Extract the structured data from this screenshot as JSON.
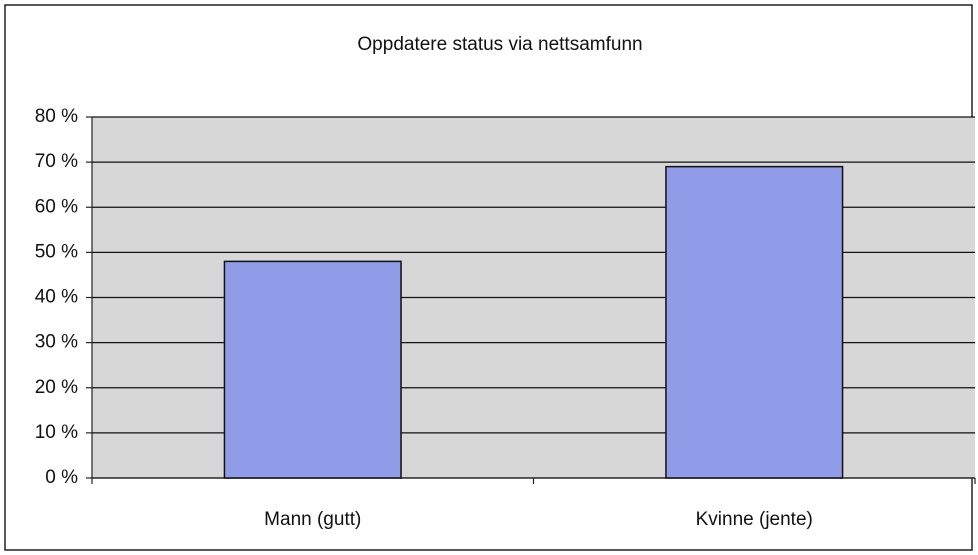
{
  "chart_data": {
    "type": "bar",
    "title": "Oppdatere status via nettsamfunn",
    "categories": [
      "Mann (gutt)",
      "Kvinne (jente)"
    ],
    "values": [
      48,
      69
    ],
    "color": "#909ce8",
    "ylim": [
      0,
      80
    ],
    "yticks": [
      {
        "value": 0,
        "label": "0 %"
      },
      {
        "value": 10,
        "label": "10 %"
      },
      {
        "value": 20,
        "label": "20 %"
      },
      {
        "value": 30,
        "label": "30 %"
      },
      {
        "value": 40,
        "label": "40 %"
      },
      {
        "value": 50,
        "label": "50 %"
      },
      {
        "value": 60,
        "label": "60 %"
      },
      {
        "value": 70,
        "label": "70 %"
      },
      {
        "value": 80,
        "label": "80 %"
      }
    ],
    "grid": true
  }
}
